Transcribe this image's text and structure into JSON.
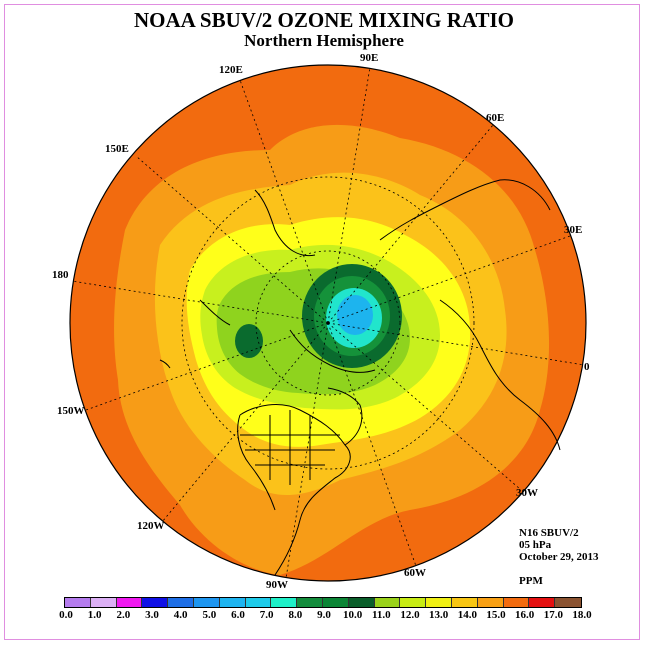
{
  "header": {
    "title": "NOAA SBUV/2 OZONE MIXING RATIO",
    "subtitle": "Northern Hemisphere"
  },
  "map": {
    "projection": "north-polar-stereographic",
    "longitude_labels": [
      "90E",
      "60E",
      "30E",
      "0",
      "30W",
      "60W",
      "90W",
      "120W",
      "150W",
      "180",
      "150E",
      "120E"
    ],
    "background_field": "ozone mixing ratio contours",
    "regions": [
      {
        "name": "outer-band",
        "value": "15.0-16.0",
        "color": "#f26b0f"
      },
      {
        "name": "mid-band",
        "value": "14.0-15.0",
        "color": "#f79c17"
      },
      {
        "name": "inner-band",
        "value": "13.0-14.0",
        "color": "#fbc21a"
      },
      {
        "name": "yellow-band",
        "value": "12.0-13.0",
        "color": "#ffff1a"
      },
      {
        "name": "light-green-band",
        "value": "11.0-12.0",
        "color": "#c8f01e"
      },
      {
        "name": "green-band",
        "value": "10.0-11.0",
        "color": "#8fd31e"
      },
      {
        "name": "vortex-dark-green",
        "value": "9.0-10.0",
        "color": "#0a6b2e"
      },
      {
        "name": "vortex-green",
        "value": "8.0-9.0",
        "color": "#15923a"
      },
      {
        "name": "vortex-cyan",
        "value": "7.0-8.0",
        "color": "#21e5cc"
      },
      {
        "name": "vortex-core",
        "value": "6.0-7.0",
        "color": "#1db4ee"
      }
    ]
  },
  "info": {
    "instrument": "N16 SBUV/2",
    "level": "05 hPa",
    "date": "October 29, 2013",
    "units": "PPM"
  },
  "colorbar": {
    "colors": [
      "#b57cee",
      "#dcb0f5",
      "#f018f0",
      "#1010e6",
      "#1e6ee6",
      "#1e96f0",
      "#1eb4f0",
      "#1ecbea",
      "#1ef0c8",
      "#138c3c",
      "#0b8535",
      "#0a5e2a",
      "#9ad21a",
      "#c8ec14",
      "#f0f014",
      "#f8c614",
      "#f8a014",
      "#f26b0f",
      "#e41010",
      "#8a5230"
    ],
    "tick_labels": [
      "0.0",
      "1.0",
      "2.0",
      "3.0",
      "4.0",
      "5.0",
      "6.0",
      "7.0",
      "8.0",
      "9.0",
      "10.0",
      "11.0",
      "12.0",
      "13.0",
      "14.0",
      "15.0",
      "16.0",
      "17.0",
      "18.0"
    ]
  }
}
